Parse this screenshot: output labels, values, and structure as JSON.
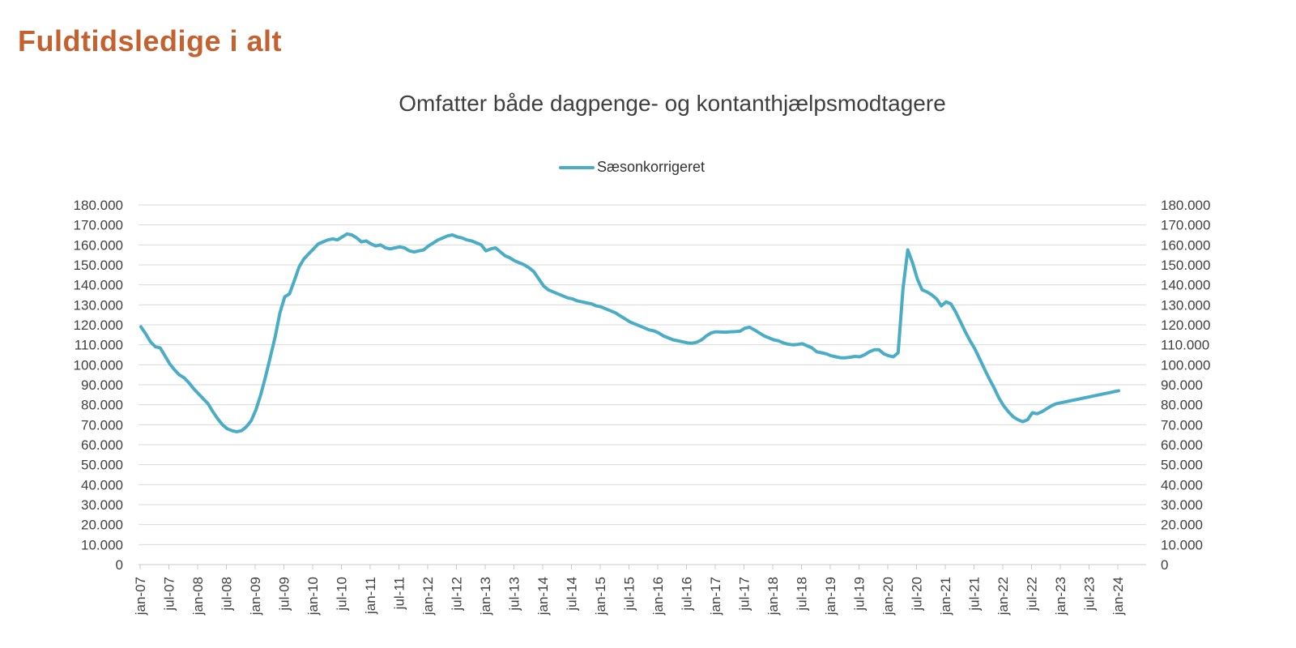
{
  "page": {
    "title": "Fuldtidsledige i alt"
  },
  "chart": {
    "subtitle": "Omfatter både dagpenge- og kontanthjælpsmodtagere",
    "legend_label": "Sæsonkorrigeret"
  },
  "colors": {
    "title": "#C3612F",
    "subtitle": "#3F3F3F",
    "line": "#4BACC6",
    "axis_text": "#404040",
    "gridline": "#D9D9D9",
    "axis_line": "#C8C8C8"
  },
  "chart_data": {
    "type": "line",
    "title": "Omfatter både dagpenge- og kontanthjælpsmodtagere",
    "xlabel": "",
    "ylabel": "",
    "ylim": [
      0,
      180000
    ],
    "y_tick_step": 10000,
    "y_tick_labels": [
      "0",
      "10.000",
      "20.000",
      "30.000",
      "40.000",
      "50.000",
      "60.000",
      "70.000",
      "80.000",
      "90.000",
      "100.000",
      "110.000",
      "120.000",
      "130.000",
      "140.000",
      "150.000",
      "160.000",
      "170.000",
      "180.000"
    ],
    "y_axis_sides": "both",
    "grid": "horizontal",
    "legend_position": "top-center",
    "x_frequency": "monthly",
    "x_start": "jan-07",
    "x_end": "jan-24",
    "x_tick_every_months": 6,
    "x_tick_labels": [
      "jan-07",
      "jul-07",
      "jan-08",
      "jul-08",
      "jan-09",
      "jul-09",
      "jan-10",
      "jul-10",
      "jan-11",
      "jul-11",
      "jan-12",
      "jul-12",
      "jan-13",
      "jul-13",
      "jan-14",
      "jul-14",
      "jan-15",
      "jul-15",
      "jan-16",
      "jul-16",
      "jan-17",
      "jul-17",
      "jan-18",
      "jul-18",
      "jan-19",
      "jul-19",
      "jan-20",
      "jul-20",
      "jan-21",
      "jul-21",
      "jan-22",
      "jul-22",
      "jan-23",
      "jul-23",
      "jan-24"
    ],
    "series": [
      {
        "name": "Sæsonkorrigeret",
        "color": "#4BACC6",
        "values": [
          119000,
          115500,
          111500,
          109000,
          108500,
          104500,
          100500,
          97500,
          95000,
          93500,
          91000,
          88000,
          85500,
          83000,
          80500,
          76500,
          73000,
          70000,
          68000,
          67000,
          66500,
          67000,
          69000,
          72000,
          77500,
          85000,
          94000,
          104000,
          114000,
          126000,
          134000,
          135500,
          142000,
          149000,
          153000,
          155500,
          158000,
          160500,
          161500,
          162500,
          163000,
          162500,
          164000,
          165500,
          165000,
          163500,
          161500,
          162000,
          160500,
          159500,
          160000,
          158500,
          158000,
          158500,
          159000,
          158500,
          157000,
          156500,
          157000,
          157500,
          159500,
          161000,
          162500,
          163500,
          164500,
          165000,
          164000,
          163500,
          162500,
          162000,
          161000,
          160000,
          157000,
          158000,
          158500,
          156500,
          154500,
          153500,
          152000,
          151000,
          150000,
          148500,
          146500,
          143000,
          139500,
          137500,
          136500,
          135500,
          134500,
          133500,
          133000,
          132000,
          131500,
          131000,
          130500,
          129500,
          129000,
          128000,
          127000,
          126000,
          124500,
          123000,
          121500,
          120500,
          119500,
          118500,
          117500,
          117000,
          116000,
          114500,
          113500,
          112500,
          112000,
          111500,
          111000,
          110800,
          111300,
          112500,
          114500,
          116000,
          116500,
          116400,
          116300,
          116500,
          116600,
          116800,
          118300,
          118800,
          117500,
          116000,
          114500,
          113500,
          112500,
          112000,
          111000,
          110300,
          110000,
          110200,
          110500,
          109500,
          108500,
          106500,
          106000,
          105500,
          104500,
          104000,
          103500,
          103500,
          103800,
          104200,
          104000,
          105000,
          106500,
          107500,
          107500,
          105500,
          104500,
          104000,
          106000,
          138000,
          157500,
          151000,
          143000,
          137500,
          136500,
          135000,
          133000,
          129500,
          131500,
          130500,
          126500,
          121500,
          116500,
          112000,
          108000,
          103000,
          98000,
          93000,
          88500,
          83500,
          79500,
          76500,
          74000,
          72500,
          71500,
          72500,
          76000,
          75500,
          76500,
          78000,
          79500,
          80500,
          81000,
          81500,
          82000,
          82500,
          83000,
          83500,
          84000,
          84500,
          85000,
          85500,
          86000,
          86500,
          87000
        ]
      }
    ]
  }
}
